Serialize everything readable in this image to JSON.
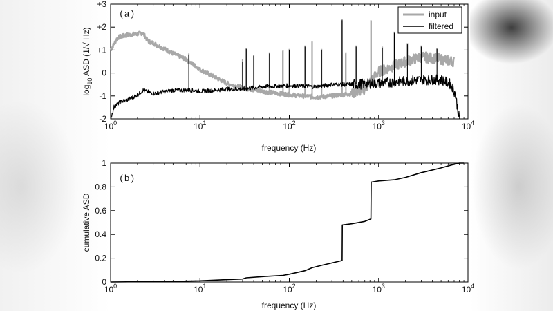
{
  "chart_data": [
    {
      "type": "line",
      "panel_label": "(a)",
      "xlabel": "frequency (Hz)",
      "ylabel_parts": [
        "log",
        "10",
        " ASD (1/√ Hz)"
      ],
      "x_scale": "log",
      "xlim": [
        1,
        10000
      ],
      "ylim": [
        -2,
        3
      ],
      "x_ticks": [
        {
          "value": 1,
          "base": "10",
          "exp": "0"
        },
        {
          "value": 10,
          "base": "10",
          "exp": "1"
        },
        {
          "value": 100,
          "base": "10",
          "exp": "2"
        },
        {
          "value": 1000,
          "base": "10",
          "exp": "3"
        },
        {
          "value": 10000,
          "base": "10",
          "exp": "4"
        }
      ],
      "y_ticks": [
        {
          "value": 3,
          "label": "+3"
        },
        {
          "value": 2,
          "label": "+2"
        },
        {
          "value": 1,
          "label": "+1"
        },
        {
          "value": 0,
          "label": "0"
        },
        {
          "value": -1,
          "label": "-1"
        },
        {
          "value": -2,
          "label": "-2"
        }
      ],
      "legend_position": "top-right",
      "grid": false,
      "series": [
        {
          "name": "input",
          "color": "#a8a8a8",
          "points": [
            [
              1.0,
              1.0
            ],
            [
              1.2,
              1.55
            ],
            [
              1.5,
              1.65
            ],
            [
              2.0,
              1.7
            ],
            [
              2.3,
              1.75
            ],
            [
              2.6,
              1.4
            ],
            [
              3.0,
              1.3
            ],
            [
              4.0,
              1.05
            ],
            [
              5.0,
              0.85
            ],
            [
              7.0,
              0.6
            ],
            [
              10.0,
              0.15
            ],
            [
              15.0,
              -0.2
            ],
            [
              20.0,
              -0.45
            ],
            [
              30.0,
              -0.65
            ],
            [
              50.0,
              -0.8
            ],
            [
              100.0,
              -0.95
            ],
            [
              200.0,
              -1.05
            ],
            [
              300.0,
              -1.0
            ],
            [
              500.0,
              -0.9
            ],
            [
              700.0,
              -0.7
            ],
            [
              1000.0,
              0.05
            ],
            [
              2000.0,
              0.5
            ],
            [
              3000.0,
              0.7
            ],
            [
              5000.0,
              0.6
            ],
            [
              7000.0,
              0.5
            ]
          ],
          "spikes": [
            [
              7.5,
              0.85
            ],
            [
              30,
              0.6
            ],
            [
              33,
              1.1
            ],
            [
              40,
              0.8
            ],
            [
              60,
              0.9
            ],
            [
              85,
              1.0
            ],
            [
              100,
              1.05
            ],
            [
              150,
              1.2
            ],
            [
              180,
              1.4
            ],
            [
              230,
              1.05
            ],
            [
              390,
              2.35
            ],
            [
              430,
              0.9
            ],
            [
              560,
              1.2
            ],
            [
              820,
              2.3
            ],
            [
              1100,
              1.15
            ],
            [
              1500,
              1.8
            ],
            [
              2100,
              1.3
            ],
            [
              3000,
              1.2
            ],
            [
              4500,
              1.1
            ]
          ]
        },
        {
          "name": "filtered",
          "color": "#000000",
          "points": [
            [
              1.0,
              -2.0
            ],
            [
              1.1,
              -1.45
            ],
            [
              1.3,
              -1.25
            ],
            [
              1.5,
              -1.2
            ],
            [
              2.0,
              -0.95
            ],
            [
              2.3,
              -0.75
            ],
            [
              3.0,
              -0.9
            ],
            [
              5.0,
              -0.75
            ],
            [
              8.0,
              -0.75
            ],
            [
              10.0,
              -0.8
            ],
            [
              15.0,
              -0.75
            ],
            [
              20.0,
              -0.7
            ],
            [
              30.0,
              -0.7
            ],
            [
              50.0,
              -0.6
            ],
            [
              100.0,
              -0.55
            ],
            [
              200.0,
              -0.6
            ],
            [
              300.0,
              -0.5
            ],
            [
              500.0,
              -0.5
            ],
            [
              1000.0,
              -0.45
            ],
            [
              2000.0,
              -0.35
            ],
            [
              3000.0,
              -0.3
            ],
            [
              5000.0,
              -0.3
            ],
            [
              6500.0,
              -0.5
            ],
            [
              7200.0,
              -0.9
            ],
            [
              8000.0,
              -2.0
            ]
          ],
          "spikes": [
            [
              7.5,
              0.8
            ],
            [
              30,
              0.5
            ],
            [
              33,
              1.05
            ],
            [
              40,
              0.75
            ],
            [
              60,
              0.85
            ],
            [
              85,
              0.95
            ],
            [
              100,
              1.0
            ],
            [
              150,
              1.15
            ],
            [
              180,
              1.35
            ],
            [
              230,
              1.0
            ],
            [
              390,
              2.3
            ],
            [
              430,
              0.85
            ],
            [
              560,
              1.15
            ],
            [
              820,
              2.25
            ],
            [
              1100,
              1.1
            ],
            [
              1500,
              1.75
            ],
            [
              2100,
              1.25
            ],
            [
              3000,
              1.15
            ],
            [
              4500,
              1.05
            ]
          ]
        }
      ]
    },
    {
      "type": "line",
      "panel_label": "(b)",
      "xlabel": "frequency (Hz)",
      "ylabel": "cumulative ASD",
      "x_scale": "log",
      "xlim": [
        1,
        10000
      ],
      "ylim": [
        0,
        1
      ],
      "x_ticks": [
        {
          "value": 1,
          "base": "10",
          "exp": "0"
        },
        {
          "value": 10,
          "base": "10",
          "exp": "1"
        },
        {
          "value": 100,
          "base": "10",
          "exp": "2"
        },
        {
          "value": 1000,
          "base": "10",
          "exp": "3"
        },
        {
          "value": 10000,
          "base": "10",
          "exp": "4"
        }
      ],
      "y_ticks": [
        {
          "value": 0,
          "label": "0"
        },
        {
          "value": 0.2,
          "label": "0.2"
        },
        {
          "value": 0.4,
          "label": "0.4"
        },
        {
          "value": 0.6,
          "label": "0.6"
        },
        {
          "value": 0.8,
          "label": "0.8"
        },
        {
          "value": 1,
          "label": "1"
        }
      ],
      "grid": false,
      "series": [
        {
          "color": "#000000",
          "points": [
            [
              1,
              0.0
            ],
            [
              5,
              0.005
            ],
            [
              10,
              0.01
            ],
            [
              20,
              0.02
            ],
            [
              30,
              0.025
            ],
            [
              33,
              0.035
            ],
            [
              50,
              0.045
            ],
            [
              85,
              0.055
            ],
            [
              100,
              0.065
            ],
            [
              150,
              0.095
            ],
            [
              180,
              0.12
            ],
            [
              230,
              0.14
            ],
            [
              390,
              0.18
            ],
            [
              392,
              0.48
            ],
            [
              500,
              0.49
            ],
            [
              700,
              0.51
            ],
            [
              820,
              0.53
            ],
            [
              825,
              0.84
            ],
            [
              1000,
              0.85
            ],
            [
              1500,
              0.86
            ],
            [
              2000,
              0.88
            ],
            [
              3000,
              0.92
            ],
            [
              5000,
              0.96
            ],
            [
              7000,
              0.99
            ],
            [
              8000,
              1.0
            ],
            [
              9000,
              1.0
            ]
          ]
        }
      ]
    }
  ],
  "legend": {
    "input_label": "input",
    "filtered_label": "filtered"
  }
}
